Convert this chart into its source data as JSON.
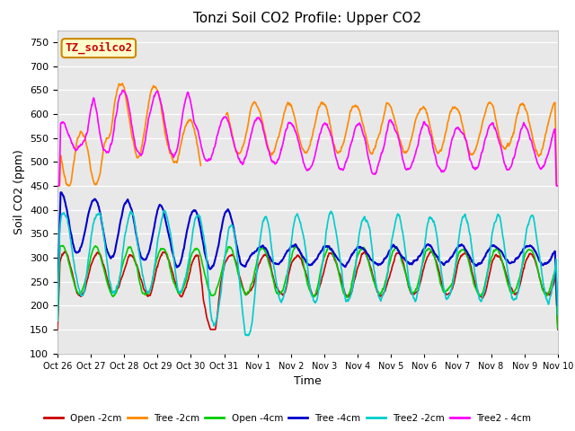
{
  "title": "Tonzi Soil CO2 Profile: Upper CO2",
  "xlabel": "Time",
  "ylabel": "Soil CO2 (ppm)",
  "ylim": [
    100,
    775
  ],
  "yticks": [
    100,
    150,
    200,
    250,
    300,
    350,
    400,
    450,
    500,
    550,
    600,
    650,
    700,
    750
  ],
  "annotation_text": "TZ_soilco2",
  "annotation_bg": "#ffffcc",
  "annotation_border": "#cc8800",
  "annotation_text_color": "#cc0000",
  "legend_labels": [
    "Open -2cm",
    "Tree -2cm",
    "Open -4cm",
    "Tree -4cm",
    "Tree2 -2cm",
    "Tree2 - 4cm"
  ],
  "line_colors": [
    "#cc0000",
    "#ff8800",
    "#00cc00",
    "#0000cc",
    "#00cccc",
    "#ff00ff"
  ],
  "x_tick_labels": [
    "Oct 26",
    "Oct 27",
    "Oct 28",
    "Oct 29",
    "Oct 30",
    "Oct 31",
    "Nov 1",
    "Nov 2",
    "Nov 3",
    "Nov 4",
    "Nov 5",
    "Nov 6",
    "Nov 7",
    "Nov 8",
    "Nov 9",
    "Nov 10"
  ],
  "plot_bg_color": "#e8e8e8",
  "background_color": "#ffffff",
  "grid_color": "#ffffff",
  "n_points": 1440,
  "n_days": 15
}
